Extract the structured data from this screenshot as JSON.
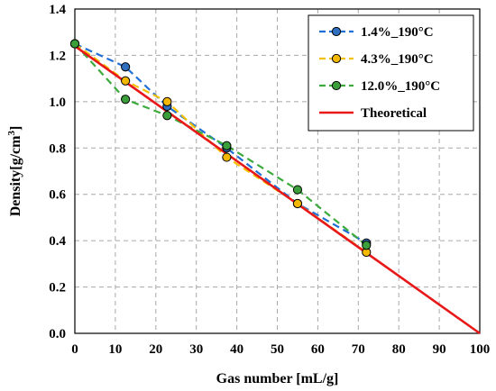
{
  "chart_data": {
    "type": "line",
    "xlabel": "Gas number  [mL/g]",
    "ylabel_main": "Density[g/cm",
    "ylabel_sup": "3",
    "ylabel_end": "]",
    "xlim": [
      0,
      100
    ],
    "ylim": [
      0.0,
      1.4
    ],
    "xticks": [
      0,
      10,
      20,
      30,
      40,
      50,
      60,
      70,
      80,
      90,
      100
    ],
    "yticks": [
      0.0,
      0.2,
      0.4,
      0.6,
      0.8,
      1.0,
      1.2,
      1.4
    ],
    "ytick_labels": [
      "0.0",
      "0.2",
      "0.4",
      "0.6",
      "0.8",
      "1.0",
      "1.2",
      "1.4"
    ],
    "grid": true,
    "legend_position": "top-right",
    "series": [
      {
        "name": "1.4%_190°C",
        "style": "dashed-marker",
        "color": "#1f6fd6",
        "marker_color": "#2e6fbf",
        "x": [
          0,
          12.5,
          22.8,
          37.5,
          55,
          72
        ],
        "y": [
          1.25,
          1.15,
          0.98,
          0.8,
          0.56,
          0.39
        ]
      },
      {
        "name": "4.3%_190°C",
        "style": "dashed-marker",
        "color": "#f5c000",
        "marker_color": "#f5b800",
        "x": [
          0,
          12.5,
          22.8,
          37.5,
          55,
          72
        ],
        "y": [
          1.25,
          1.09,
          1.0,
          0.76,
          0.56,
          0.35
        ]
      },
      {
        "name": "12.0%_190°C",
        "style": "dashed-marker",
        "color": "#3caa3c",
        "marker_color": "#3a9e3a",
        "x": [
          0,
          12.5,
          22.8,
          37.5,
          55,
          72
        ],
        "y": [
          1.25,
          1.01,
          0.94,
          0.81,
          0.62,
          0.38
        ]
      },
      {
        "name": "Theoretical",
        "style": "solid",
        "color": "#e81818",
        "x": [
          0,
          100
        ],
        "y": [
          1.24,
          0.0
        ]
      }
    ]
  }
}
